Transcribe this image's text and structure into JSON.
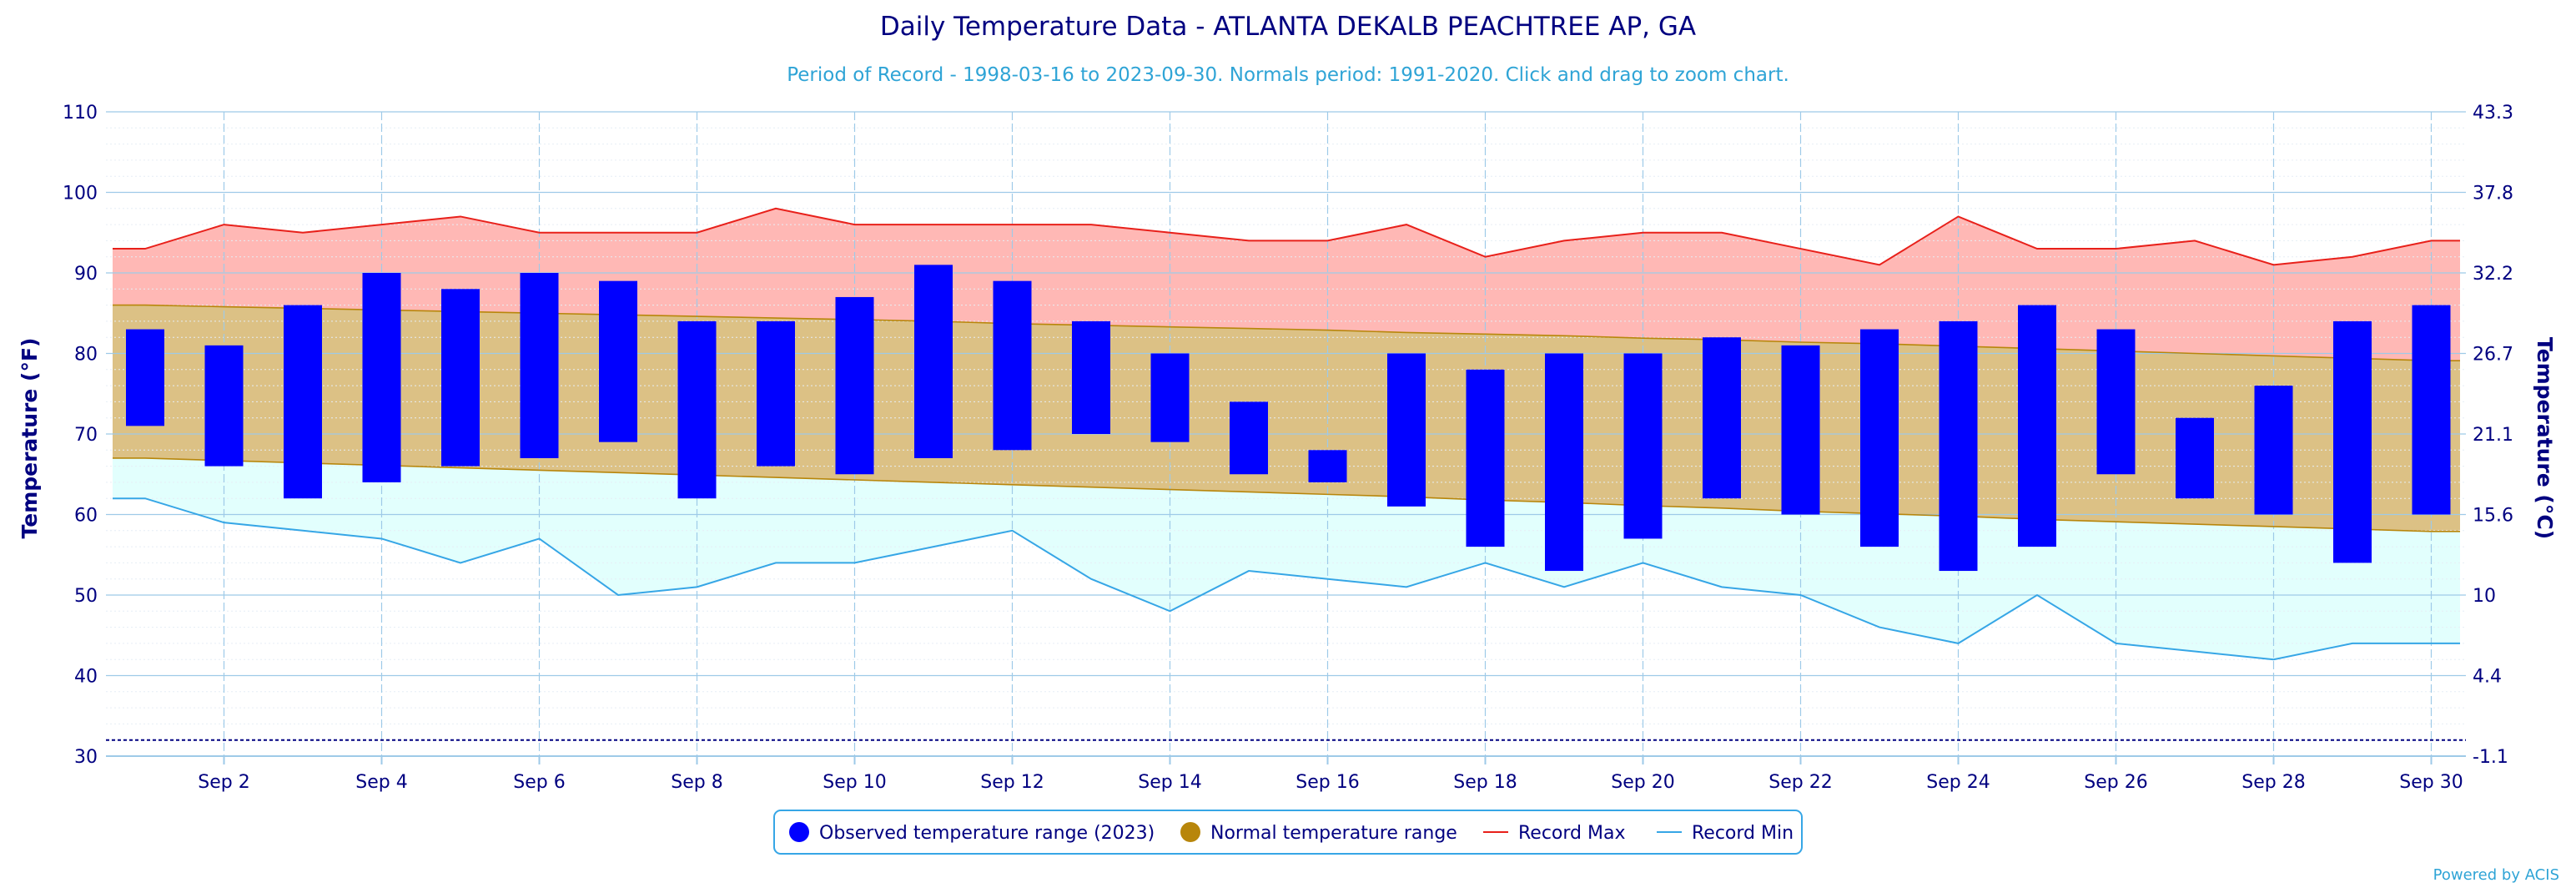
{
  "title": "Daily Temperature Data - ATLANTA DEKALB PEACHTREE AP, GA",
  "subtitle": "Period of Record - 1998-03-16 to 2023-09-30. Normals period: 1991-2020. Click and drag to zoom chart.",
  "credits": "Powered by ACIS",
  "colors": {
    "title": "#000080",
    "subtitle": "#2fa4d6",
    "observed": "#0000ff",
    "normal_fill": "#dcc185",
    "normal_line": "#b8860b",
    "record_max_fill": "#ffb8b5",
    "record_max_line": "#e8201a",
    "record_min_fill": "#e2fffd",
    "record_min_line": "#36a6e6",
    "grid": "#9ecae8",
    "axis_text": "#000080"
  },
  "legend": {
    "observed_label": "Observed temperature range (2023)",
    "normal_label": "Normal temperature range",
    "record_max_label": "Record Max",
    "record_min_label": "Record Min"
  },
  "chart_data": {
    "type": "bar",
    "ylabel": "Temperature (°F)",
    "ylabel_right": "Temperature (°C)",
    "ylim": [
      30,
      110
    ],
    "y_ticks": [
      30,
      40,
      50,
      60,
      70,
      80,
      90,
      100,
      110
    ],
    "y2_ticks": [
      "-1.1",
      "4.4",
      "10",
      "15.6",
      "21.1",
      "26.7",
      "32.2",
      "37.8",
      "43.3"
    ],
    "days": [
      1,
      2,
      3,
      4,
      5,
      6,
      7,
      8,
      9,
      10,
      11,
      12,
      13,
      14,
      15,
      16,
      17,
      18,
      19,
      20,
      21,
      22,
      23,
      24,
      25,
      26,
      27,
      28,
      29,
      30
    ],
    "x_tick_labels": [
      {
        "day": 2,
        "label": "Sep 2"
      },
      {
        "day": 4,
        "label": "Sep 4"
      },
      {
        "day": 6,
        "label": "Sep 6"
      },
      {
        "day": 8,
        "label": "Sep 8"
      },
      {
        "day": 10,
        "label": "Sep 10"
      },
      {
        "day": 12,
        "label": "Sep 12"
      },
      {
        "day": 14,
        "label": "Sep 14"
      },
      {
        "day": 16,
        "label": "Sep 16"
      },
      {
        "day": 18,
        "label": "Sep 18"
      },
      {
        "day": 20,
        "label": "Sep 20"
      },
      {
        "day": 22,
        "label": "Sep 22"
      },
      {
        "day": 24,
        "label": "Sep 24"
      },
      {
        "day": 26,
        "label": "Sep 26"
      },
      {
        "day": 28,
        "label": "Sep 28"
      },
      {
        "day": 30,
        "label": "Sep 30"
      }
    ],
    "observed_max": [
      83,
      81,
      86,
      90,
      88,
      90,
      89,
      84,
      84,
      87,
      91,
      89,
      84,
      80,
      74,
      68,
      80,
      78,
      80,
      80,
      82,
      81,
      83,
      84,
      86,
      83,
      72,
      76,
      84,
      86
    ],
    "observed_min": [
      71,
      66,
      62,
      64,
      66,
      67,
      69,
      62,
      66,
      65,
      67,
      68,
      70,
      69,
      65,
      64,
      61,
      56,
      53,
      57,
      62,
      60,
      56,
      53,
      56,
      65,
      62,
      60,
      54,
      60
    ],
    "normal_max": [
      86.0,
      85.8,
      85.6,
      85.4,
      85.2,
      85.0,
      84.8,
      84.6,
      84.4,
      84.2,
      84.0,
      83.7,
      83.5,
      83.3,
      83.1,
      82.9,
      82.6,
      82.4,
      82.2,
      81.9,
      81.7,
      81.4,
      81.2,
      80.9,
      80.6,
      80.3,
      80.0,
      79.7,
      79.4,
      79.1
    ],
    "normal_min": [
      67.0,
      66.7,
      66.4,
      66.1,
      65.8,
      65.5,
      65.2,
      64.9,
      64.6,
      64.3,
      64.0,
      63.7,
      63.4,
      63.1,
      62.8,
      62.5,
      62.2,
      61.8,
      61.5,
      61.1,
      60.8,
      60.4,
      60.1,
      59.8,
      59.4,
      59.1,
      58.8,
      58.5,
      58.2,
      57.9
    ],
    "record_max": [
      93,
      96,
      95,
      96,
      97,
      95,
      95,
      95,
      98,
      96,
      96,
      96,
      96,
      95,
      94,
      94,
      96,
      92,
      94,
      95,
      95,
      93,
      91,
      97,
      93,
      93,
      94,
      91,
      92,
      94
    ],
    "record_min": [
      62,
      59,
      58,
      57,
      54,
      57,
      50,
      51,
      54,
      54,
      56,
      58,
      52,
      48,
      53,
      52,
      51,
      54,
      51,
      54,
      51,
      50,
      46,
      44,
      50,
      44,
      43,
      42,
      44,
      44
    ],
    "reference_line": 32,
    "grid": true,
    "legend_position": "bottom-center"
  }
}
